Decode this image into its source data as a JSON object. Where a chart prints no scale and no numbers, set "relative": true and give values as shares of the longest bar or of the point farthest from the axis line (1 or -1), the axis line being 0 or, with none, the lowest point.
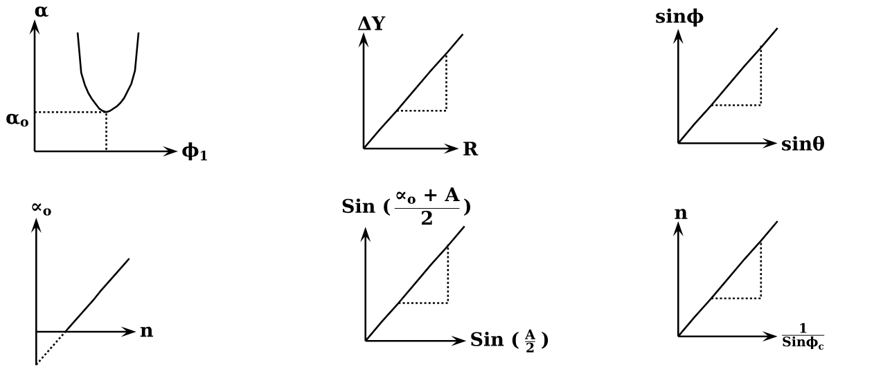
{
  "chart_data": [
    {
      "type": "line",
      "relative": true,
      "ylabel": "α",
      "xlabel": "ϕ$_{1}$",
      "categories": [
        null,
        null,
        null,
        null,
        null,
        null,
        null,
        null,
        null,
        null,
        null,
        null,
        null,
        null,
        null,
        null,
        null,
        null,
        null,
        null,
        null,
        null,
        null,
        null,
        null,
        null,
        null,
        null,
        null,
        null,
        null,
        null,
        null,
        null,
        null,
        null,
        null,
        null,
        null,
        null,
        null
      ],
      "series": [
        {
          "color": "#000000",
          "values": [
            null,
            null,
            null,
            null,
            null,
            null,
            null,
            null,
            null,
            null,
            null,
            null,
            1.0,
            0.66,
            0.56,
            0.49,
            0.44,
            0.4,
            0.36,
            0.34,
            0.33,
            0.34,
            0.36,
            0.38,
            0.41,
            0.45,
            0.51,
            0.57,
            0.68,
            1.0,
            null,
            null,
            null,
            null,
            null,
            null,
            null,
            null,
            null,
            null,
            null
          ]
        },
        {
          "type": "step",
          "color": "#000000",
          "line_style": "dotted",
          "values": [
            0.33,
            0.33,
            0.33,
            0.33,
            0.33,
            0.33,
            0.33,
            0.33,
            0.33,
            0.33,
            0.33,
            0.33,
            0.33,
            0.33,
            0.33,
            0.33,
            0.33,
            0.33,
            0.33,
            0.33,
            0,
            null,
            null,
            null,
            null,
            null,
            null,
            null,
            null,
            null,
            null,
            null,
            null,
            null,
            null,
            null,
            null,
            null,
            null,
            null,
            null
          ]
        }
      ],
      "annotations": [
        "α$_{o}$"
      ]
    },
    {
      "type": "line",
      "relative": true,
      "ylabel": "ΔY",
      "xlabel": "R",
      "categories": [
        null,
        null,
        null,
        null,
        null,
        null,
        null
      ],
      "series": [
        {
          "color": "#000000",
          "values": [
            0,
            0.17,
            0.33,
            0.5,
            0.67,
            0.83,
            1
          ]
        },
        {
          "type": "step",
          "color": "#000000",
          "line_style": "dotted",
          "values": [
            null,
            null,
            0.33,
            0.33,
            0.33,
            0.83,
            null
          ]
        }
      ]
    },
    {
      "type": "line",
      "relative": true,
      "ylabel": "sinϕ",
      "xlabel": "sinθ",
      "categories": [
        null,
        null,
        null,
        null,
        null,
        null,
        null
      ],
      "series": [
        {
          "color": "#000000",
          "values": [
            0,
            0.17,
            0.33,
            0.5,
            0.67,
            0.83,
            1
          ]
        },
        {
          "type": "step",
          "color": "#000000",
          "line_style": "dotted",
          "values": [
            null,
            null,
            0.33,
            0.33,
            0.33,
            0.85,
            null
          ]
        }
      ]
    },
    {
      "type": "line",
      "relative": true,
      "ylabel": "∝$_{o}$",
      "xlabel": "n",
      "categories": [
        null,
        null,
        null,
        null,
        null,
        null,
        null,
        null,
        null,
        null,
        null,
        null,
        null,
        null,
        null,
        null,
        null
      ],
      "series": [
        {
          "color": "#000000",
          "values": [
            null,
            null,
            null,
            null,
            null,
            0,
            0.09,
            0.18,
            0.27,
            0.36,
            0.45,
            0.55,
            0.64,
            0.73,
            0.82,
            0.91,
            1
          ]
        },
        {
          "color": "#000000",
          "line_style": "dotted",
          "values": [
            -0.45,
            -0.36,
            -0.27,
            -0.18,
            -0.09,
            0,
            null,
            null,
            null,
            null,
            null,
            null,
            null,
            null,
            null,
            null,
            null
          ]
        }
      ]
    },
    {
      "type": "line",
      "relative": true,
      "ylabel": "\\text{Sin (}\\,\\frac{\\text{∝}_{\\text{o}}\\text{ + A}}{\\text{2}}\\,\\text{)}",
      "xlabel": "\\text{Sin (}\\;\\frac{\\text{A}}{\\text{2}}\\;\\text{)}",
      "categories": [
        null,
        null,
        null,
        null,
        null,
        null,
        null
      ],
      "series": [
        {
          "color": "#000000",
          "values": [
            0,
            0.17,
            0.33,
            0.5,
            0.67,
            0.83,
            1
          ]
        },
        {
          "type": "step",
          "color": "#000000",
          "line_style": "dotted",
          "values": [
            null,
            null,
            0.33,
            0.33,
            0.33,
            0.84,
            null
          ]
        }
      ]
    },
    {
      "type": "line",
      "relative": true,
      "ylabel": "n",
      "xlabel": "\\frac{\\text{1}}{\\text{Sinϕ}_{\\text{c}}}",
      "categories": [
        null,
        null,
        null,
        null,
        null,
        null,
        null
      ],
      "series": [
        {
          "color": "#000000",
          "values": [
            0,
            0.17,
            0.33,
            0.5,
            0.67,
            0.83,
            1
          ]
        },
        {
          "type": "step",
          "color": "#000000",
          "line_style": "dotted",
          "values": [
            null,
            null,
            0.33,
            0.33,
            0.33,
            0.83,
            null
          ]
        }
      ]
    }
  ]
}
